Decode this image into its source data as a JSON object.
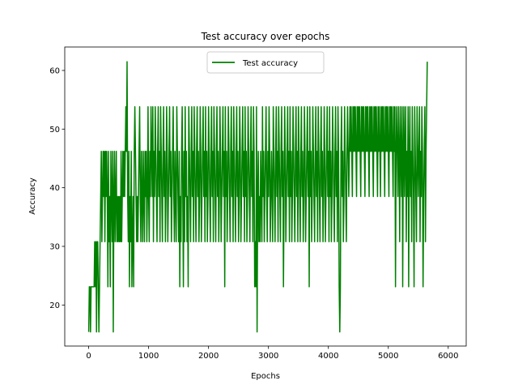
{
  "chart_data": {
    "type": "line",
    "title": "Test accuracy over epochs",
    "xlabel": "Epochs",
    "ylabel": "Accuracy",
    "xlim": [
      -400,
      6300
    ],
    "ylim": [
      13,
      64
    ],
    "xticks": [
      0,
      1000,
      2000,
      3000,
      4000,
      5000,
      6000
    ],
    "yticks": [
      20,
      30,
      40,
      50,
      60
    ],
    "xtick_labels": [
      "0",
      "1000",
      "2000",
      "3000",
      "4000",
      "5000",
      "6000"
    ],
    "ytick_labels": [
      "20",
      "30",
      "40",
      "50",
      "60"
    ],
    "grid": false,
    "legend": {
      "position": "top-center",
      "entries": [
        "Test accuracy"
      ]
    },
    "series": [
      {
        "name": "Test accuracy",
        "color": "#008000",
        "x_start": 0,
        "x_step": 10,
        "values": [
          15.4,
          23.1,
          23.1,
          15.4,
          23.1,
          23.1,
          23.1,
          23.1,
          23.1,
          23.1,
          30.8,
          23.1,
          30.8,
          15.4,
          30.8,
          30.8,
          23.1,
          15.4,
          23.1,
          30.8,
          38.5,
          46.2,
          30.8,
          38.5,
          46.2,
          38.5,
          46.2,
          30.8,
          46.2,
          38.5,
          46.2,
          38.5,
          23.1,
          46.2,
          30.8,
          38.5,
          23.1,
          46.2,
          38.5,
          30.8,
          46.2,
          15.4,
          38.5,
          46.2,
          30.8,
          38.5,
          46.2,
          30.8,
          38.5,
          30.8,
          38.5,
          30.8,
          38.5,
          30.8,
          46.2,
          30.8,
          38.5,
          46.2,
          38.5,
          46.2,
          38.5,
          46.2,
          53.8,
          46.2,
          61.5,
          38.5,
          30.8,
          46.2,
          23.1,
          38.5,
          30.8,
          46.2,
          23.1,
          30.8,
          38.5,
          23.1,
          46.2,
          53.8,
          46.2,
          38.5,
          30.8,
          38.5,
          30.8,
          38.5,
          46.2,
          53.8,
          38.5,
          30.8,
          46.2,
          38.5,
          30.8,
          46.2,
          38.5,
          30.8,
          46.2,
          38.5,
          46.2,
          30.8,
          38.5,
          53.8,
          38.5,
          30.8,
          46.2,
          38.5,
          53.8,
          46.2,
          38.5,
          53.8,
          30.8,
          46.2,
          38.5,
          53.8,
          46.2,
          38.5,
          30.8,
          46.2,
          53.8,
          38.5,
          46.2,
          30.8,
          53.8,
          46.2,
          38.5,
          30.8,
          46.2,
          53.8,
          38.5,
          46.2,
          30.8,
          38.5,
          53.8,
          46.2,
          30.8,
          38.5,
          46.2,
          53.8,
          38.5,
          46.2,
          30.8,
          38.5,
          46.2,
          53.8,
          38.5,
          30.8,
          46.2,
          38.5,
          30.8,
          53.8,
          46.2,
          38.5,
          30.8,
          46.2,
          23.1,
          38.5,
          30.8,
          46.2,
          53.8,
          38.5,
          23.1,
          46.2,
          30.8,
          53.8,
          38.5,
          46.2,
          30.8,
          38.5,
          23.1,
          53.8,
          46.2,
          38.5,
          30.8,
          46.2,
          53.8,
          38.5,
          46.2,
          30.8,
          53.8,
          46.2,
          38.5,
          30.8,
          46.2,
          53.8,
          38.5,
          46.2,
          30.8,
          38.5,
          53.8,
          46.2,
          30.8,
          38.5,
          46.2,
          53.8,
          38.5,
          46.2,
          30.8,
          53.8,
          38.5,
          46.2,
          30.8,
          38.5,
          53.8,
          46.2,
          38.5,
          30.8,
          46.2,
          53.8,
          38.5,
          46.2,
          30.8,
          53.8,
          46.2,
          38.5,
          30.8,
          46.2,
          53.8,
          38.5,
          46.2,
          30.8,
          38.5,
          53.8,
          46.2,
          30.8,
          38.5,
          46.2,
          53.8,
          38.5,
          46.2,
          23.1,
          53.8,
          38.5,
          46.2,
          30.8,
          38.5,
          53.8,
          46.2,
          38.5,
          30.8,
          46.2,
          53.8,
          38.5,
          46.2,
          30.8,
          53.8,
          46.2,
          38.5,
          30.8,
          46.2,
          53.8,
          38.5,
          46.2,
          30.8,
          38.5,
          53.8,
          46.2,
          30.8,
          38.5,
          46.2,
          53.8,
          38.5,
          46.2,
          30.8,
          53.8,
          38.5,
          46.2,
          30.8,
          38.5,
          53.8,
          46.2,
          38.5,
          30.8,
          46.2,
          53.8,
          38.5,
          46.2,
          30.8,
          53.8,
          46.2,
          23.1,
          30.8,
          23.1,
          53.8,
          15.4,
          38.5,
          46.2,
          30.8,
          38.5,
          30.8,
          46.2,
          38.5,
          30.8,
          53.8,
          38.5,
          46.2,
          30.8,
          38.5,
          46.2,
          53.8,
          38.5,
          30.8,
          46.2,
          38.5,
          53.8,
          46.2,
          30.8,
          38.5,
          46.2,
          38.5,
          30.8,
          53.8,
          46.2,
          38.5,
          30.8,
          46.2,
          53.8,
          38.5,
          46.2,
          30.8,
          53.8,
          46.2,
          38.5,
          30.8,
          46.2,
          53.8,
          38.5,
          46.2,
          23.1,
          38.5,
          53.8,
          46.2,
          30.8,
          38.5,
          46.2,
          53.8,
          38.5,
          46.2,
          30.8,
          53.8,
          38.5,
          46.2,
          30.8,
          38.5,
          53.8,
          46.2,
          38.5,
          30.8,
          46.2,
          53.8,
          38.5,
          46.2,
          30.8,
          53.8,
          46.2,
          38.5,
          30.8,
          46.2,
          53.8,
          38.5,
          46.2,
          30.8,
          38.5,
          53.8,
          46.2,
          30.8,
          38.5,
          46.2,
          53.8,
          38.5,
          46.2,
          23.1,
          53.8,
          38.5,
          46.2,
          30.8,
          38.5,
          53.8,
          46.2,
          38.5,
          30.8,
          46.2,
          53.8,
          38.5,
          46.2,
          30.8,
          53.8,
          46.2,
          38.5,
          30.8,
          46.2,
          53.8,
          38.5,
          46.2,
          30.8,
          38.5,
          53.8,
          46.2,
          30.8,
          38.5,
          46.2,
          53.8,
          38.5,
          46.2,
          30.8,
          53.8,
          38.5,
          46.2,
          30.8,
          38.5,
          53.8,
          46.2,
          38.5,
          30.8,
          46.2,
          53.8,
          38.5,
          46.2,
          30.8,
          53.8,
          46.2,
          23.1,
          15.4,
          23.1,
          46.2,
          53.8,
          38.5,
          46.2,
          30.8,
          38.5,
          53.8,
          46.2,
          38.5,
          30.8,
          46.2,
          53.8,
          46.2,
          38.5,
          46.2,
          53.8,
          46.2,
          53.8,
          46.2,
          38.5,
          53.8,
          46.2,
          53.8,
          46.2,
          53.8,
          46.2,
          38.5,
          53.8,
          46.2,
          53.8,
          46.2,
          53.8,
          46.2,
          38.5,
          53.8,
          46.2,
          53.8,
          46.2,
          53.8,
          46.2,
          38.5,
          53.8,
          46.2,
          53.8,
          46.2,
          53.8,
          46.2,
          38.5,
          53.8,
          46.2,
          53.8,
          46.2,
          53.8,
          46.2,
          38.5,
          53.8,
          46.2,
          53.8,
          46.2,
          53.8,
          46.2,
          38.5,
          53.8,
          46.2,
          53.8,
          46.2,
          38.5,
          53.8,
          46.2,
          53.8,
          46.2,
          53.8,
          46.2,
          38.5,
          53.8,
          46.2,
          53.8,
          46.2,
          53.8,
          46.2,
          38.5,
          53.8,
          46.2,
          53.8,
          46.2,
          53.8,
          46.2,
          38.5,
          53.8,
          46.2,
          53.8,
          23.1,
          46.2,
          53.8,
          46.2,
          38.5,
          53.8,
          46.2,
          30.8,
          53.8,
          46.2,
          38.5,
          53.8,
          23.1,
          46.2,
          53.8,
          38.5,
          46.2,
          53.8,
          30.8,
          46.2,
          38.5,
          53.8,
          23.1,
          46.2,
          53.8,
          38.5,
          46.2,
          30.8,
          53.8,
          46.2,
          38.5,
          23.1,
          53.8,
          46.2,
          38.5,
          30.8,
          53.8,
          46.2,
          38.5,
          46.2,
          53.8,
          30.8,
          46.2,
          38.5,
          53.8,
          46.2,
          23.1,
          38.5,
          46.2,
          53.8,
          30.8,
          46.2,
          53.8,
          61.5
        ]
      }
    ]
  }
}
